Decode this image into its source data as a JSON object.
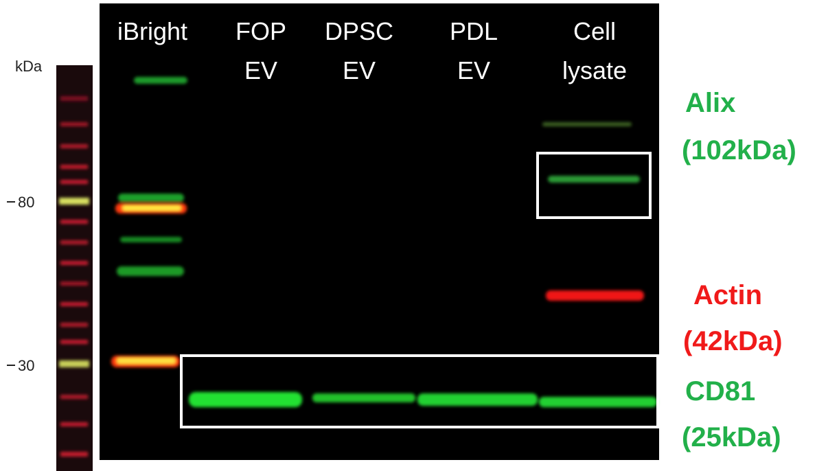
{
  "ladder": {
    "unit": "kDa",
    "markers": [
      "80",
      "30"
    ]
  },
  "lanes": [
    {
      "lines": [
        "iBright"
      ]
    },
    {
      "lines": [
        "FOP",
        "EV"
      ]
    },
    {
      "lines": [
        "DPSC",
        "EV"
      ]
    },
    {
      "lines": [
        "PDL",
        "EV"
      ]
    },
    {
      "lines": [
        "Cell",
        "lysate"
      ]
    }
  ],
  "annotations": [
    {
      "name": "Alix",
      "size": "(102kDa)"
    },
    {
      "name": "Actin",
      "size": "(42kDa)"
    },
    {
      "name": "CD81",
      "size": "(25kDa)"
    }
  ]
}
